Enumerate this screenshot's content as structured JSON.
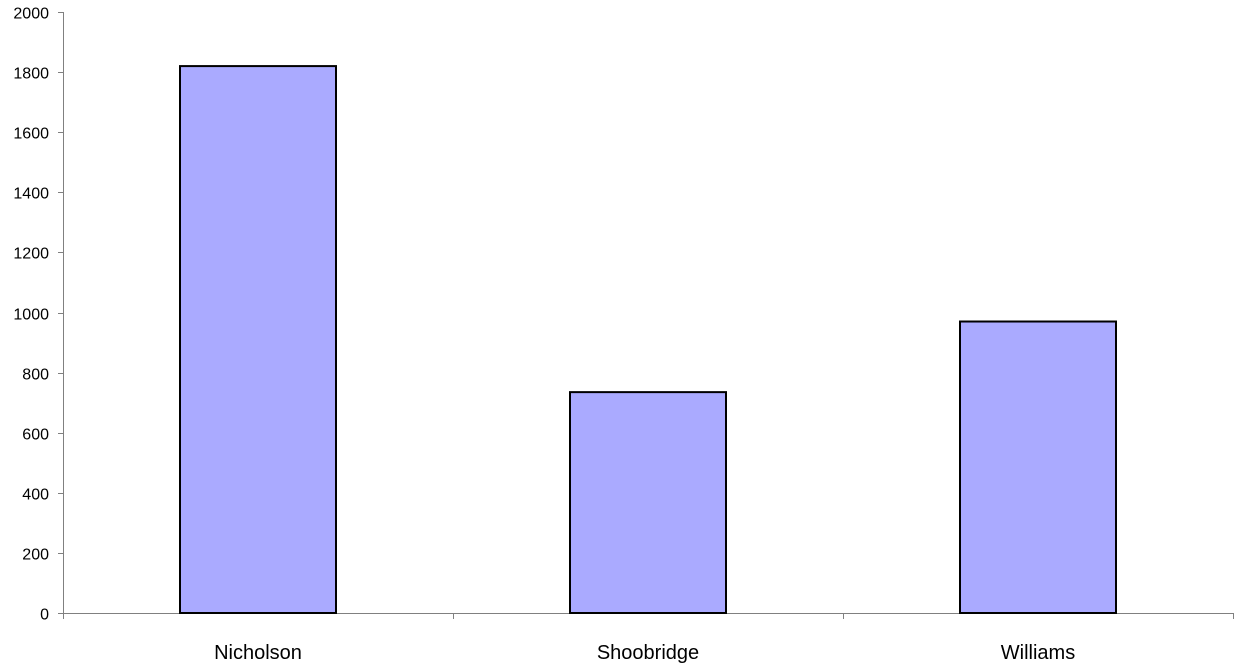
{
  "chart_data": {
    "type": "bar",
    "title": "",
    "xlabel": "",
    "ylabel": "",
    "categories": [
      "Nicholson",
      "Shoobridge",
      "Williams"
    ],
    "values": [
      1820,
      735,
      970
    ],
    "ylim": [
      0,
      2000
    ],
    "y_ticks": [
      0,
      200,
      400,
      600,
      800,
      1000,
      1200,
      1400,
      1600,
      1800,
      2000
    ],
    "grid": false,
    "legend": "none",
    "colors": {
      "bar_fill": "#aaaaff",
      "bar_stroke": "#000000",
      "axis": "#808080",
      "text": "#000000"
    }
  }
}
